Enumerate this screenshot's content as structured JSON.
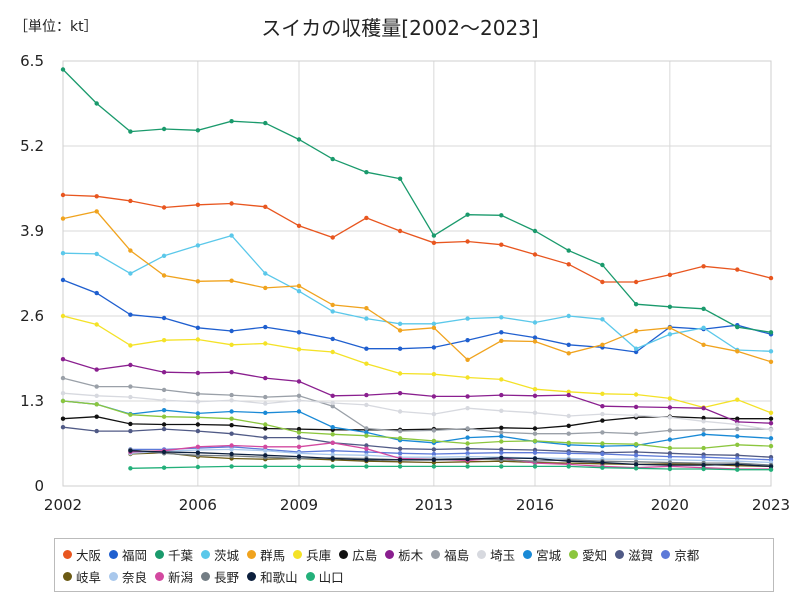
{
  "chart_data": {
    "type": "line",
    "title": "スイカの収穫量[2002〜2023]",
    "unit_label": "［単位：kt］",
    "xlim": [
      2002,
      2023
    ],
    "ylim": [
      0,
      6.5
    ],
    "x_ticks": [
      "2002",
      "2006",
      "2009",
      "2013",
      "2016",
      "2020",
      "2023"
    ],
    "y_ticks": [
      "0",
      "1.3",
      "2.6",
      "3.9",
      "5.2",
      "6.5"
    ],
    "grid": true,
    "legend_position": "bottom",
    "x": [
      2002,
      2003,
      2004,
      2005,
      2006,
      2007,
      2008,
      2009,
      2010,
      2011,
      2012,
      2013,
      2014,
      2015,
      2016,
      2017,
      2018,
      2019,
      2020,
      2021,
      2022,
      2023
    ],
    "series": [
      {
        "name": "大阪",
        "color": "#e8561f",
        "values": [
          4.45,
          4.43,
          4.36,
          4.26,
          4.3,
          4.32,
          4.27,
          3.98,
          3.8,
          4.1,
          3.9,
          3.72,
          3.74,
          3.69,
          3.54,
          3.39,
          3.12,
          3.12,
          3.23,
          3.36,
          3.31,
          3.18
        ]
      },
      {
        "name": "福岡",
        "color": "#1f5fcf",
        "values": [
          3.15,
          2.95,
          2.62,
          2.57,
          2.42,
          2.37,
          2.43,
          2.35,
          2.25,
          2.1,
          2.1,
          2.12,
          2.23,
          2.35,
          2.27,
          2.16,
          2.12,
          2.05,
          2.43,
          2.4,
          2.46,
          2.32
        ]
      },
      {
        "name": "千葉",
        "color": "#1a9a6c",
        "values": [
          6.37,
          5.85,
          5.42,
          5.46,
          5.44,
          5.58,
          5.55,
          5.3,
          5.0,
          4.8,
          4.7,
          3.83,
          4.15,
          4.14,
          3.9,
          3.6,
          3.38,
          2.78,
          2.74,
          2.71,
          2.43,
          2.35
        ]
      },
      {
        "name": "茨城",
        "color": "#5bc8ea",
        "values": [
          3.56,
          3.55,
          3.25,
          3.52,
          3.68,
          3.83,
          3.25,
          2.98,
          2.67,
          2.56,
          2.48,
          2.48,
          2.56,
          2.58,
          2.5,
          2.6,
          2.55,
          2.1,
          2.32,
          2.42,
          2.08,
          2.06
        ]
      },
      {
        "name": "群馬",
        "color": "#f0a31e",
        "values": [
          4.09,
          4.2,
          3.6,
          3.22,
          3.13,
          3.14,
          3.03,
          3.06,
          2.77,
          2.72,
          2.38,
          2.42,
          1.93,
          2.22,
          2.21,
          2.03,
          2.16,
          2.37,
          2.42,
          2.16,
          2.06,
          1.9
        ]
      },
      {
        "name": "兵庫",
        "color": "#f4e227",
        "values": [
          2.6,
          2.47,
          2.15,
          2.23,
          2.24,
          2.16,
          2.18,
          2.09,
          2.05,
          1.87,
          1.72,
          1.71,
          1.66,
          1.63,
          1.48,
          1.44,
          1.41,
          1.4,
          1.34,
          1.2,
          1.32,
          1.12
        ]
      },
      {
        "name": "広島",
        "color": "#111111",
        "values": [
          1.03,
          1.06,
          0.95,
          0.94,
          0.94,
          0.93,
          0.88,
          0.87,
          0.86,
          0.86,
          0.86,
          0.87,
          0.87,
          0.89,
          0.88,
          0.92,
          1.0,
          1.05,
          1.06,
          1.04,
          1.03,
          1.03
        ]
      },
      {
        "name": "栃木",
        "color": "#8a1f8f",
        "values": [
          1.94,
          1.78,
          1.85,
          1.74,
          1.73,
          1.74,
          1.65,
          1.6,
          1.38,
          1.39,
          1.42,
          1.37,
          1.37,
          1.39,
          1.38,
          1.39,
          1.22,
          1.21,
          1.2,
          1.19,
          0.98,
          0.96
        ]
      },
      {
        "name": "福島",
        "color": "#9aa0a8",
        "values": [
          1.65,
          1.52,
          1.52,
          1.47,
          1.41,
          1.39,
          1.36,
          1.38,
          1.22,
          0.88,
          0.84,
          0.85,
          0.88,
          0.82,
          0.8,
          0.8,
          0.82,
          0.8,
          0.85,
          0.86,
          0.87,
          0.87
        ]
      },
      {
        "name": "埼玉",
        "color": "#d7d9df",
        "values": [
          1.42,
          1.38,
          1.36,
          1.31,
          1.29,
          1.31,
          1.26,
          1.31,
          1.27,
          1.24,
          1.14,
          1.1,
          1.19,
          1.15,
          1.12,
          1.07,
          1.1,
          1.08,
          1.05,
          0.99,
          0.94,
          0.86
        ]
      },
      {
        "name": "宮城",
        "color": "#1a8ad6",
        "values": [
          1.3,
          1.25,
          1.1,
          1.16,
          1.11,
          1.14,
          1.12,
          1.14,
          0.9,
          0.82,
          0.7,
          0.66,
          0.74,
          0.76,
          0.68,
          0.63,
          0.61,
          0.62,
          0.71,
          0.79,
          0.76,
          0.73
        ]
      },
      {
        "name": "愛知",
        "color": "#8cc63e",
        "values": [
          1.3,
          1.25,
          1.09,
          1.06,
          1.05,
          1.03,
          0.94,
          0.82,
          0.79,
          0.77,
          0.73,
          0.69,
          0.65,
          0.68,
          0.69,
          0.66,
          0.65,
          0.64,
          0.58,
          0.58,
          0.63,
          0.61
        ]
      },
      {
        "name": "滋賀",
        "color": "#505a86",
        "values": [
          0.9,
          0.84,
          0.84,
          0.87,
          0.84,
          0.8,
          0.74,
          0.74,
          0.66,
          0.62,
          0.57,
          0.56,
          0.57,
          0.56,
          0.55,
          0.53,
          0.51,
          0.52,
          0.5,
          0.48,
          0.47,
          0.44
        ]
      },
      {
        "name": "京都",
        "color": "#5d7ad8",
        "values": [
          null,
          null,
          0.56,
          0.56,
          0.58,
          0.6,
          0.56,
          0.52,
          0.54,
          0.52,
          0.5,
          0.49,
          0.5,
          0.51,
          0.51,
          0.5,
          0.49,
          0.47,
          0.45,
          0.44,
          0.42,
          0.4
        ]
      },
      {
        "name": "岐阜",
        "color": "#6b5a14",
        "values": [
          null,
          null,
          0.49,
          0.51,
          0.45,
          0.42,
          0.41,
          0.42,
          0.4,
          0.38,
          0.37,
          0.36,
          0.37,
          0.38,
          0.36,
          0.35,
          0.34,
          0.33,
          0.34,
          0.33,
          0.31,
          0.3
        ]
      },
      {
        "name": "奈良",
        "color": "#a9c8ec",
        "values": [
          null,
          null,
          0.5,
          0.53,
          0.55,
          0.56,
          0.54,
          0.5,
          0.48,
          0.47,
          0.44,
          0.44,
          0.45,
          0.44,
          0.43,
          0.42,
          0.41,
          0.41,
          0.4,
          0.39,
          0.38,
          0.36
        ]
      },
      {
        "name": "新潟",
        "color": "#d349a0",
        "values": [
          null,
          null,
          0.52,
          0.54,
          0.6,
          0.62,
          0.6,
          0.6,
          0.66,
          0.57,
          0.42,
          0.41,
          0.39,
          0.43,
          0.35,
          0.33,
          0.3,
          0.28,
          0.3,
          0.28,
          0.26,
          0.26
        ]
      },
      {
        "name": "長野",
        "color": "#737d84",
        "values": [
          null,
          null,
          0.55,
          0.5,
          0.47,
          0.46,
          0.44,
          0.42,
          0.43,
          0.42,
          0.4,
          0.41,
          0.42,
          0.4,
          0.38,
          0.4,
          0.38,
          0.37,
          0.36,
          0.35,
          0.35,
          0.32
        ]
      },
      {
        "name": "和歌山",
        "color": "#0c1f3d",
        "values": [
          null,
          null,
          0.54,
          0.52,
          0.51,
          0.49,
          0.47,
          0.45,
          0.42,
          0.4,
          0.4,
          0.4,
          0.41,
          0.43,
          0.42,
          0.38,
          0.36,
          0.33,
          0.32,
          0.32,
          0.33,
          0.3
        ]
      },
      {
        "name": "山口",
        "color": "#23b07a",
        "values": [
          null,
          null,
          0.27,
          0.28,
          0.29,
          0.3,
          0.3,
          0.3,
          0.3,
          0.3,
          0.3,
          0.3,
          0.3,
          0.3,
          0.3,
          0.3,
          0.28,
          0.27,
          0.26,
          0.26,
          0.25,
          0.25
        ]
      }
    ]
  }
}
